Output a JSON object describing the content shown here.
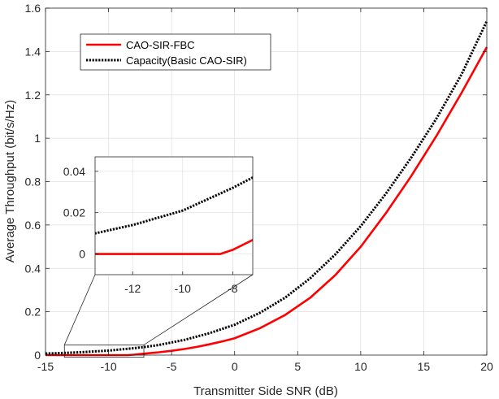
{
  "chart_data": {
    "type": "line",
    "title": "",
    "xlabel": "Transmitter Side SNR (dB)",
    "ylabel": "Average Throughput (bit/s/Hz)",
    "xlim": [
      -15,
      20
    ],
    "ylim": [
      0,
      1.6
    ],
    "xticks": [
      -15,
      -10,
      -5,
      0,
      5,
      10,
      15,
      20
    ],
    "xtick_labels": [
      "-15",
      "-10",
      "-5",
      "0",
      "5",
      "10",
      "15",
      "20"
    ],
    "yticks": [
      0,
      0.2,
      0.4,
      0.6,
      0.8,
      1.0,
      1.2,
      1.4,
      1.6
    ],
    "ytick_labels": [
      "0",
      "0.2",
      "0.4",
      "0.6",
      "0.8",
      "1",
      "1.2",
      "1.4",
      "1.6"
    ],
    "grid": true,
    "legend_position": "top-left",
    "series": [
      {
        "name": "CAO-SIR-FBC",
        "color": "#ff0000",
        "style": "solid",
        "x": [
          -15,
          -12.5,
          -10,
          -8.5,
          -8,
          -7.5,
          -7,
          -6,
          -5,
          -4,
          -3,
          -2,
          -1,
          0,
          2,
          4,
          6,
          8,
          10,
          12,
          14,
          16,
          18,
          20
        ],
        "y": [
          0,
          0,
          0,
          0,
          0.002,
          0.005,
          0.008,
          0.013,
          0.02,
          0.028,
          0.038,
          0.05,
          0.063,
          0.078,
          0.124,
          0.185,
          0.265,
          0.37,
          0.5,
          0.655,
          0.825,
          1.01,
          1.21,
          1.42
        ]
      },
      {
        "name": "Capacity(Basic CAO-SIR)",
        "color": "#000000",
        "style": "dotted",
        "x": [
          -15,
          -13.5,
          -12,
          -10,
          -8,
          -7.2,
          -6,
          -4,
          -2,
          0,
          2,
          4,
          6,
          8,
          10,
          12,
          14,
          16,
          18,
          20
        ],
        "y": [
          0.007,
          0.01,
          0.014,
          0.021,
          0.032,
          0.037,
          0.047,
          0.07,
          0.101,
          0.14,
          0.195,
          0.265,
          0.355,
          0.465,
          0.595,
          0.745,
          0.91,
          1.09,
          1.295,
          1.54
        ]
      }
    ],
    "inset": {
      "xlim": [
        -13.5,
        -7.2
      ],
      "ylim": [
        -0.01,
        0.047
      ],
      "xticks": [
        -12,
        -10,
        -8
      ],
      "xtick_labels": [
        "-12",
        "-10",
        "-8"
      ],
      "yticks": [
        0,
        0.02,
        0.04
      ],
      "ytick_labels": [
        "0",
        "0.02",
        "0.04"
      ],
      "grid": true
    }
  }
}
